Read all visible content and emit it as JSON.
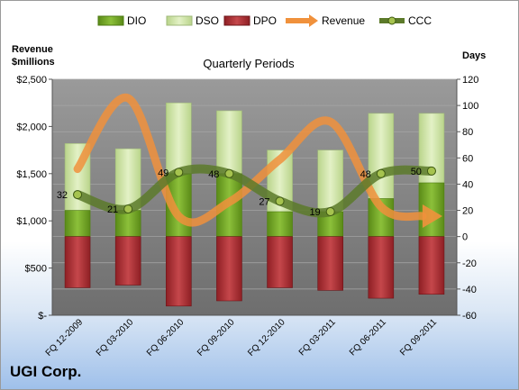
{
  "company": "UGI Corp.",
  "chart_data": {
    "type": "bar",
    "title": "Quarterly Periods",
    "left_axis_title": [
      "Revenue",
      "$millions"
    ],
    "right_axis_title": "Days",
    "categories": [
      "FQ 12-2009",
      "FQ 03-2010",
      "FQ 06-2010",
      "FQ 09-2010",
      "FQ 12-2010",
      "FQ 03-2011",
      "FQ 06-2011",
      "FQ 09-2011"
    ],
    "left_ticks": [
      "$-",
      "$500",
      "$1,000",
      "$1,500",
      "$2,000",
      "$2,500"
    ],
    "left_range": [
      0,
      2500
    ],
    "right_ticks": [
      -60,
      -40,
      -20,
      0,
      20,
      40,
      60,
      80,
      100,
      120
    ],
    "right_range": [
      -60,
      120
    ],
    "legend": [
      "DIO",
      "DSO",
      "DPO",
      "Revenue",
      "CCC"
    ],
    "legend_position": "top",
    "colors": {
      "DIO": "#6a9a1f",
      "DSO": "#c8e09a",
      "DPO": "#a8262c",
      "Revenue": "#f0913c",
      "CCC": "#5c7a2a",
      "plot_bg": "#7f7f7f"
    },
    "series": [
      {
        "name": "DIO",
        "values": [
          20,
          20,
          48,
          48,
          19,
          19,
          29,
          41
        ]
      },
      {
        "name": "DSO",
        "values": [
          71,
          67,
          102,
          96,
          66,
          66,
          94,
          94
        ]
      },
      {
        "name": "DPO",
        "values": [
          -39,
          -37,
          -53,
          -49,
          -39,
          -41,
          -47,
          -44
        ]
      },
      {
        "name": "Revenue",
        "values": [
          1550,
          2300,
          1050,
          1200,
          1650,
          2050,
          1150,
          1050
        ]
      },
      {
        "name": "CCC",
        "values": [
          32,
          21,
          49,
          48,
          27,
          19,
          48,
          50
        ]
      }
    ]
  }
}
